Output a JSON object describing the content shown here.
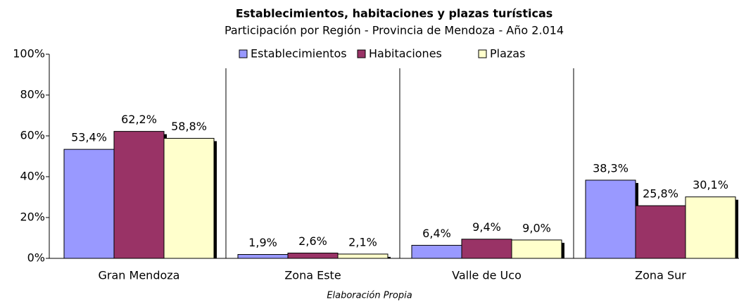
{
  "chart_data": {
    "type": "bar",
    "title": "Establecimientos, habitaciones y plazas turísticas",
    "subtitle": "Participación por Región - Provincia de Mendoza - Año 2.014",
    "categories": [
      "Gran Mendoza",
      "Zona Este",
      "Valle de Uco",
      "Zona Sur"
    ],
    "series": [
      {
        "name": "Establecimientos",
        "color": "#9999ff",
        "values": [
          53.4,
          1.9,
          6.4,
          38.3
        ],
        "value_labels": [
          "53,4%",
          "1,9%",
          "6,4%",
          "38,3%"
        ]
      },
      {
        "name": "Habitaciones",
        "color": "#993366",
        "values": [
          62.2,
          2.6,
          9.4,
          25.8
        ],
        "value_labels": [
          "62,2%",
          "2,6%",
          "9,4%",
          "25,8%"
        ]
      },
      {
        "name": "Plazas",
        "color": "#ffffcc",
        "values": [
          58.8,
          2.1,
          9.0,
          30.1
        ],
        "value_labels": [
          "58,8%",
          "2,1%",
          "9,0%",
          "30,1%"
        ]
      }
    ],
    "ylim": [
      0,
      100
    ],
    "yticks": [
      {
        "value": 0,
        "label": "0%"
      },
      {
        "value": 20,
        "label": "20%"
      },
      {
        "value": 40,
        "label": "40%"
      },
      {
        "value": 60,
        "label": "60%"
      },
      {
        "value": 80,
        "label": "80%"
      },
      {
        "value": 100,
        "label": "100%"
      }
    ],
    "legend": "top",
    "annotation": "Elaboración Propia"
  }
}
